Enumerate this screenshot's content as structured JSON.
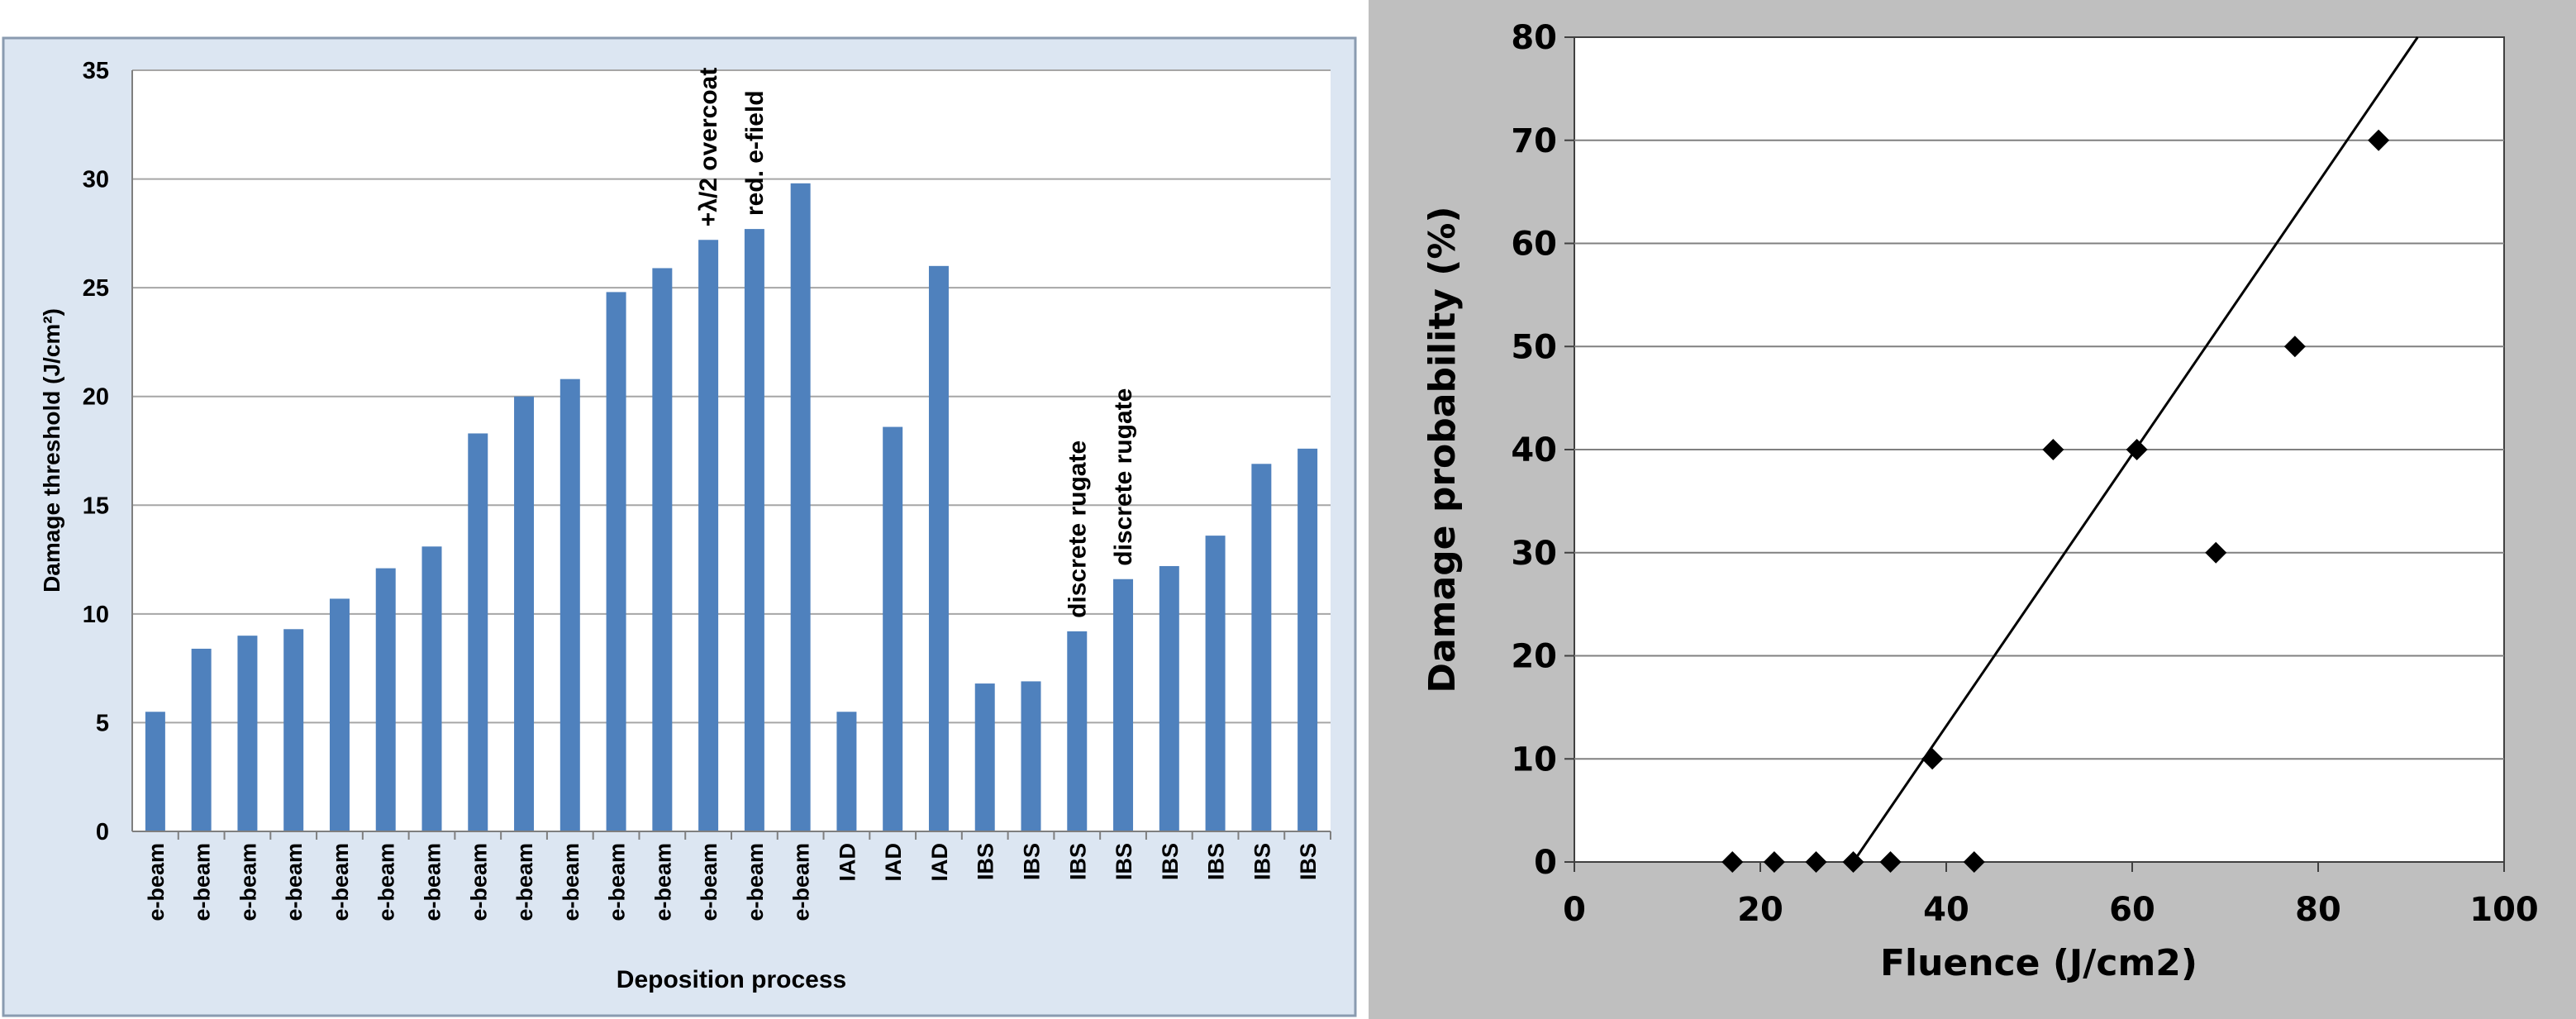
{
  "chart_data": [
    {
      "type": "bar",
      "xlabel": "Deposition process",
      "ylabel": "Damage threshold (J/cm²)",
      "ylim": [
        0,
        35
      ],
      "yticks": [
        0,
        5,
        10,
        15,
        20,
        25,
        30,
        35
      ],
      "grid": true,
      "legend": "none",
      "colors": {
        "bar": "#4f81bd",
        "plot_bg": "#ffffff",
        "panel_bg": "#dce6f2",
        "grid": "#a6a6a6"
      },
      "categories": [
        "e-beam",
        "e-beam",
        "e-beam",
        "e-beam",
        "e-beam",
        "e-beam",
        "e-beam",
        "e-beam",
        "e-beam",
        "e-beam",
        "e-beam",
        "e-beam",
        "e-beam",
        "e-beam",
        "e-beam",
        "IAD",
        "IAD",
        "IAD",
        "IBS",
        "IBS",
        "IBS",
        "IBS",
        "IBS",
        "IBS",
        "IBS",
        "IBS"
      ],
      "values": [
        5.5,
        8.4,
        9.0,
        9.3,
        10.7,
        12.1,
        13.1,
        18.3,
        20.0,
        20.8,
        24.8,
        25.9,
        27.2,
        27.7,
        29.8,
        5.5,
        18.6,
        26.0,
        6.8,
        6.9,
        9.2,
        11.6,
        12.2,
        13.6,
        16.9,
        17.6
      ],
      "annotations": [
        {
          "bar_index": 12,
          "text": "+λ/2 overcoat"
        },
        {
          "bar_index": 13,
          "text": "red. e-field"
        },
        {
          "bar_index": 20,
          "text": "discrete rugate"
        },
        {
          "bar_index": 21,
          "text": "discrete rugate"
        }
      ]
    },
    {
      "type": "scatter",
      "xlabel": "Fluence (J/cm2)",
      "ylabel": "Damage probability (%)",
      "xlim": [
        0,
        100
      ],
      "ylim": [
        0,
        80
      ],
      "xticks": [
        0,
        20,
        40,
        60,
        80,
        100
      ],
      "yticks": [
        0,
        10,
        20,
        30,
        40,
        50,
        60,
        70,
        80
      ],
      "grid": true,
      "legend": "none",
      "marker": "diamond",
      "colors": {
        "marker": "#000000",
        "trend": "#000000",
        "panel_bg": "#bfbfbf",
        "plot_bg": "#ffffff",
        "grid": "#808080"
      },
      "x": [
        17,
        21.5,
        26,
        30,
        34,
        43,
        38.5,
        51.5,
        60.5,
        69,
        77.5,
        86.5
      ],
      "y": [
        0,
        0,
        0,
        0,
        0,
        0,
        10,
        40,
        40,
        30,
        50,
        70
      ],
      "trendline": {
        "x": [
          30,
          90.7
        ],
        "y": [
          0,
          80
        ]
      }
    }
  ]
}
